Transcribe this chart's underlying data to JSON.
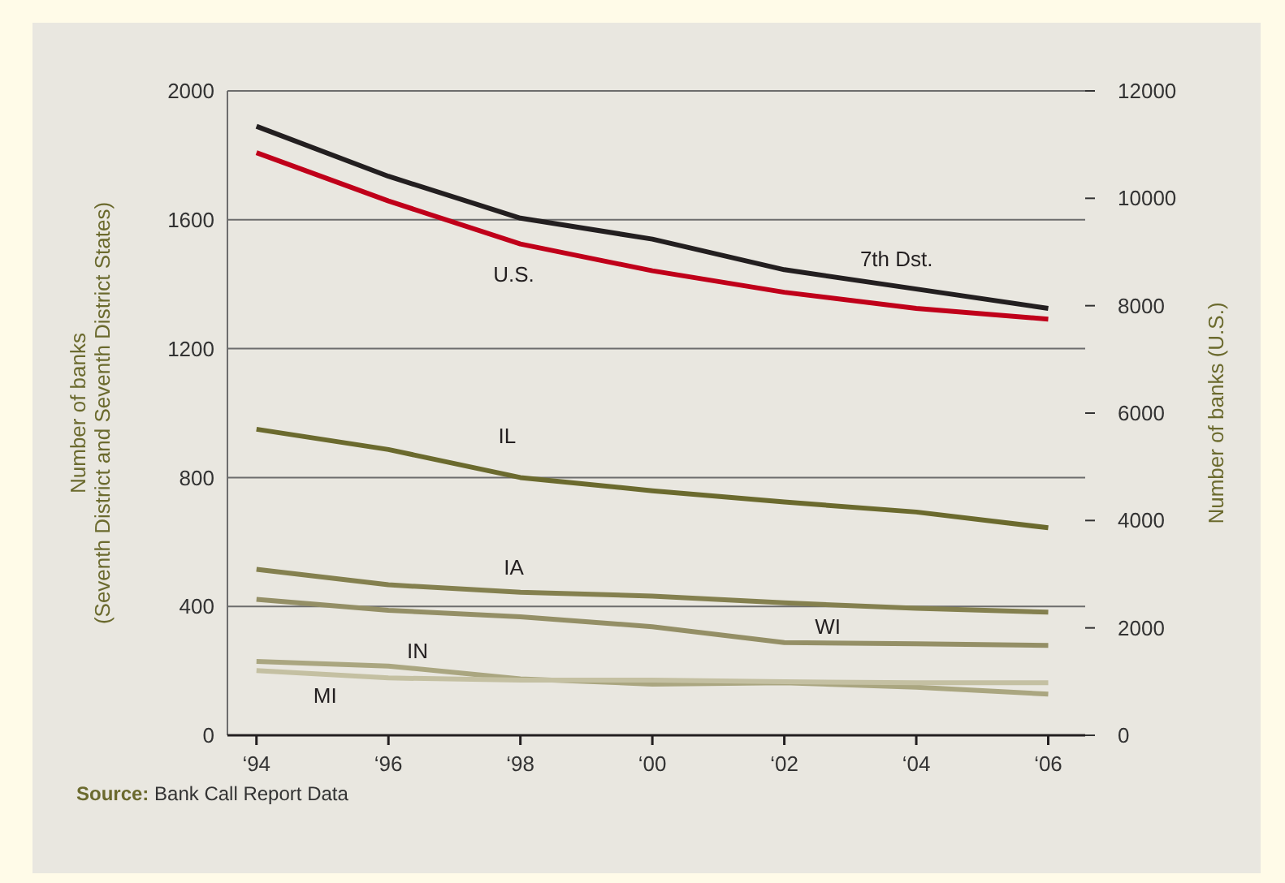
{
  "chart_data": {
    "type": "line",
    "ylabel": "Number of banks\n(Seventh District and Seventh District States)",
    "y2label": "Number of banks (U.S.)",
    "categories": [
      "‘94",
      "‘96",
      "‘98",
      "‘00",
      "‘02",
      "‘04",
      "‘06"
    ],
    "ylim": [
      0,
      2000
    ],
    "yticks": [
      0,
      400,
      800,
      1200,
      1600,
      2000
    ],
    "y2lim": [
      0,
      12000
    ],
    "y2ticks": [
      0,
      2000,
      4000,
      6000,
      8000,
      10000,
      12000
    ],
    "grid": "y",
    "series": [
      {
        "name": "7th Dst.",
        "color": "#231f20",
        "values": [
          1890,
          1735,
          1605,
          1540,
          1445,
          1385,
          1325
        ]
      },
      {
        "name": "U.S.",
        "color": "#c0001a",
        "axis": "y2",
        "values": [
          10850,
          9950,
          9150,
          8650,
          8250,
          7950,
          7750
        ]
      },
      {
        "name": "IL",
        "color": "#6b6a2e",
        "values": [
          950,
          887,
          800,
          759,
          724,
          693,
          644
        ]
      },
      {
        "name": "IA",
        "color": "#84804f",
        "values": [
          515,
          467,
          444,
          432,
          411,
          394,
          382
        ]
      },
      {
        "name": "WI",
        "color": "#948f66",
        "values": [
          422,
          388,
          368,
          337,
          288,
          284,
          279
        ]
      },
      {
        "name": "IN",
        "color": "#aaa680",
        "values": [
          229,
          215,
          175,
          159,
          163,
          149,
          128
        ]
      },
      {
        "name": "MI",
        "color": "#c4c0a2",
        "values": [
          201,
          178,
          171,
          171,
          166,
          163,
          163
        ]
      }
    ],
    "annotations": [
      "Source: Bank Call Report Data"
    ]
  }
}
